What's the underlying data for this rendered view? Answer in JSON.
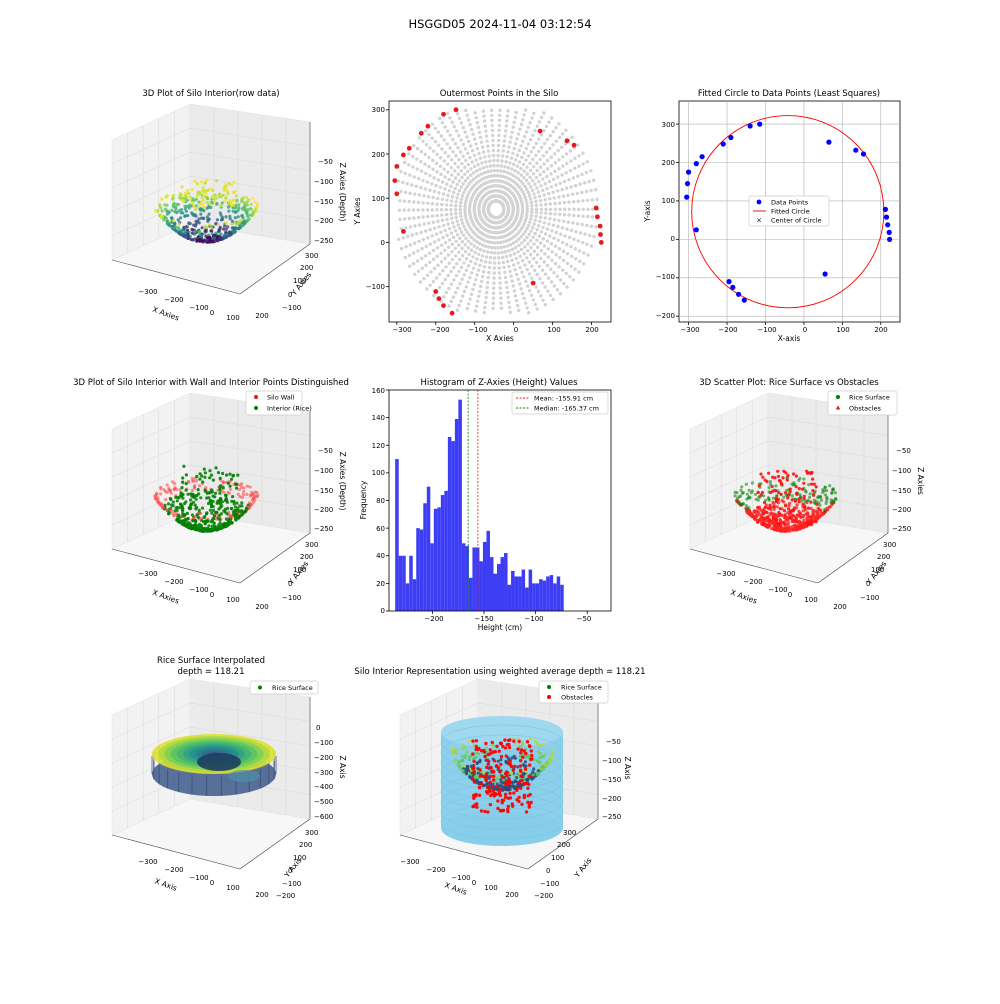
{
  "title": "HSGGD05 2024-11-04 03:12:54",
  "colors": {
    "red": "#e41a1c",
    "green": "#008000",
    "blue": "#0000ff",
    "grey": "#d3d3d3",
    "hist": "#3d3df5",
    "skyblue": "#87ceeb"
  },
  "chart_data": [
    {
      "id": "p1",
      "type": "scatter3d",
      "title": "3D Plot of Silo Interior(row data)",
      "xlabel": "X Axies",
      "ylabel": "Y Axies",
      "zlabel": "Z Axies (Depth)",
      "xticks": [
        "−300",
        "−200",
        "−100",
        "0",
        "100",
        "200"
      ],
      "yticks": [
        "−100",
        "0",
        "100",
        "200",
        "300"
      ],
      "zticks": [
        "−50",
        "−100",
        "−150",
        "−200",
        "−250"
      ],
      "xlim": [
        -300,
        230
      ],
      "ylim": [
        -160,
        300
      ],
      "zlim": [
        -250,
        -30
      ],
      "colormap": "viridis"
    },
    {
      "id": "p2",
      "type": "scatter",
      "title": "Outermost Points in the Silo",
      "xlabel": "X Axies",
      "ylabel": "Y Axies",
      "xticks": [
        "−300",
        "−200",
        "−100",
        "0",
        "100",
        "200"
      ],
      "yticks": [
        "300",
        "200",
        "100",
        "0",
        "−100"
      ],
      "xlim": [
        -320,
        250
      ],
      "ylim": [
        -180,
        320
      ],
      "outer_points": [
        [
          -300,
          172
        ],
        [
          -305,
          140
        ],
        [
          -300,
          110
        ],
        [
          -283,
          198
        ],
        [
          -268,
          213
        ],
        [
          -237,
          247
        ],
        [
          -220,
          263
        ],
        [
          -180,
          290
        ],
        [
          -148,
          300
        ],
        [
          -283,
          25
        ],
        [
          -200,
          -111
        ],
        [
          -192,
          -127
        ],
        [
          -180,
          -143
        ],
        [
          -158,
          -160
        ],
        [
          50,
          -92
        ],
        [
          68,
          252
        ],
        [
          137,
          230
        ],
        [
          155,
          220
        ],
        [
          212,
          78
        ],
        [
          215,
          58
        ],
        [
          222,
          37
        ],
        [
          223,
          18
        ],
        [
          225,
          0
        ]
      ]
    },
    {
      "id": "p3",
      "type": "scatter",
      "title": "Fitted Circle to Data Points (Least Squares)",
      "xlabel": "X-axis",
      "ylabel": "Y-axis",
      "xticks": [
        "−300",
        "−200",
        "−100",
        "0",
        "100",
        "200"
      ],
      "yticks": [
        "300",
        "200",
        "100",
        "0",
        "−100",
        "−200"
      ],
      "xlim": [
        -325,
        250
      ],
      "ylim": [
        -215,
        360
      ],
      "legend": [
        "Data Points",
        "Fitted Circle",
        "Center of Circle"
      ],
      "circle": {
        "cx": -42,
        "cy": 72,
        "r": 250
      },
      "points": [
        [
          -305,
          110
        ],
        [
          -303,
          145
        ],
        [
          -300,
          175
        ],
        [
          -280,
          197
        ],
        [
          -280,
          25
        ],
        [
          -265,
          215
        ],
        [
          -210,
          248
        ],
        [
          -190,
          265
        ],
        [
          -140,
          295
        ],
        [
          -115,
          300
        ],
        [
          65,
          253
        ],
        [
          135,
          232
        ],
        [
          155,
          222
        ],
        [
          212,
          78
        ],
        [
          215,
          58
        ],
        [
          218,
          38
        ],
        [
          222,
          18
        ],
        [
          223,
          0
        ],
        [
          55,
          -90
        ],
        [
          -195,
          -110
        ],
        [
          -185,
          -125
        ],
        [
          -170,
          -143
        ],
        [
          -155,
          -158
        ]
      ]
    },
    {
      "id": "p4",
      "type": "scatter3d",
      "title": "3D Plot of Silo Interior with Wall and Interior Points Distinguished",
      "xlabel": "X Axies",
      "ylabel": "Y Axies",
      "zlabel": "Z Axies (Depth)",
      "xticks": [
        "−300",
        "−200",
        "−100",
        "0",
        "100",
        "200"
      ],
      "yticks": [
        "−100",
        "0",
        "100",
        "200",
        "300"
      ],
      "zticks": [
        "−50",
        "−100",
        "−150",
        "−200",
        "−250"
      ],
      "legend": [
        "Silo Wall",
        "Interior (Rice)"
      ]
    },
    {
      "id": "p5",
      "type": "bar",
      "title": "Histogram of Z-Axies (Height) Values",
      "xlabel": "Height (cm)",
      "ylabel": "Frequency",
      "xticks": [
        "−200",
        "−150",
        "−100",
        "−50"
      ],
      "yticks": [
        "0",
        "20",
        "40",
        "60",
        "80",
        "100",
        "120",
        "140",
        "160"
      ],
      "xlim": [
        -242,
        -27
      ],
      "ylim": [
        0,
        160
      ],
      "bin_start": -236,
      "bin_width": 3.4,
      "values": [
        110,
        40,
        40,
        20,
        40,
        23,
        60,
        59,
        78,
        90,
        49,
        74,
        75,
        84,
        87,
        126,
        123,
        139,
        153,
        49,
        47,
        24,
        46,
        46,
        36,
        50,
        58,
        39,
        27,
        34,
        39,
        42,
        19,
        29,
        25,
        25,
        30,
        17,
        30,
        20,
        20,
        23,
        22,
        25,
        26,
        20,
        25,
        19
      ],
      "mean": -155.91,
      "median": -165.37,
      "legend": [
        "Mean: -155.91 cm",
        "Median: -165.37 cm"
      ]
    },
    {
      "id": "p6",
      "type": "scatter3d",
      "title": "3D Scatter Plot: Rice Surface vs Obstacles",
      "xlabel": "X Axies",
      "ylabel": "Y Axies",
      "zlabel": "Z Axies",
      "xticks": [
        "−300",
        "−200",
        "−100",
        "0",
        "100",
        "200"
      ],
      "yticks": [
        "−100",
        "0",
        "100",
        "200",
        "300"
      ],
      "zticks": [
        "−50",
        "−100",
        "−150",
        "−200",
        "−250"
      ],
      "legend": [
        "Rice Surface",
        "Obstacles"
      ]
    },
    {
      "id": "p7",
      "type": "surface3d",
      "title": "Rice Surface Interpolated",
      "subtitle": "depth = 118.21",
      "xlabel": "X Axis",
      "ylabel": "Y Axis",
      "zlabel": "Z Axis",
      "xticks": [
        "−300",
        "−200",
        "−100",
        "0",
        "100",
        "200"
      ],
      "yticks": [
        "−200",
        "−100",
        "0",
        "100",
        "200",
        "300"
      ],
      "zticks": [
        "0",
        "−100",
        "−200",
        "−300",
        "−400",
        "−500",
        "−600"
      ],
      "legend": [
        "Rice Surface"
      ]
    },
    {
      "id": "p8",
      "type": "scatter3d",
      "title": "Silo Interior Representation using weighted average depth = 118.21",
      "xlabel": "X Axis",
      "ylabel": "Y Axis",
      "zlabel": "Z Axis",
      "xticks": [
        "−300",
        "−200",
        "−100",
        "0",
        "100",
        "200"
      ],
      "yticks": [
        "−200",
        "−100",
        "0",
        "100",
        "200",
        "300"
      ],
      "zticks": [
        "−50",
        "−100",
        "−150",
        "−200",
        "−250"
      ],
      "legend": [
        "Rice Surface",
        "Obstacles"
      ]
    }
  ]
}
